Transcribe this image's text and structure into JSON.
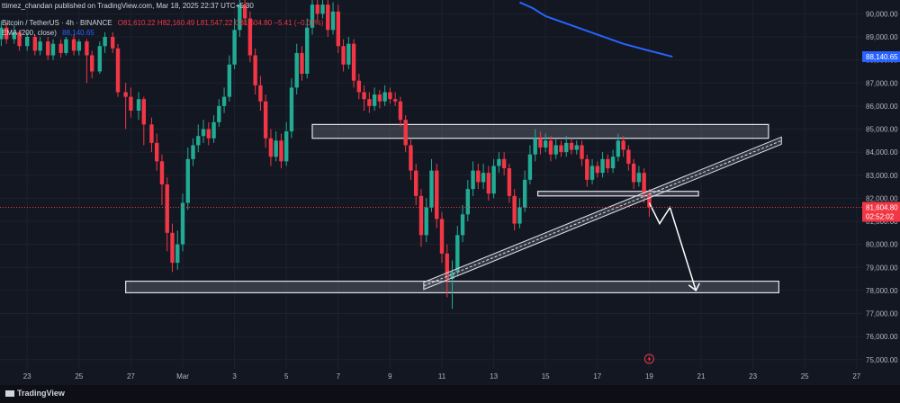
{
  "header": {
    "publisher": "ttimez_chandan published on TradingView.com, Mar 18, 2025 22:37 UTC+5:30",
    "symbol": "Bitcoin / TetherUS · 4h · BINANCE",
    "ohlc": "O81,610.22 H82,160.49 L81,547.22 C81,604.80 −5.41 (−0.01%)",
    "ema_label": "EMA (200, close)",
    "ema_value": "88,140.65"
  },
  "footer": {
    "brand": "TradingView"
  },
  "colors": {
    "bg": "#131722",
    "up": "#22ab94",
    "down": "#f23645",
    "ema": "#2962ff",
    "zone": "#e0e3eb"
  },
  "chart_data": {
    "type": "candlestick",
    "symbol": "BTCUSDT",
    "timeframe": "4h",
    "ylim": [
      74600,
      90600
    ],
    "y_ticks": [
      "75,000.00",
      "76,000.00",
      "77,000.00",
      "78,000.00",
      "79,000.00",
      "80,000.00",
      "81,000.00",
      "82,000.00",
      "83,000.00",
      "84,000.00",
      "85,000.00",
      "86,000.00",
      "87,000.00",
      "88,000.00",
      "89,000.00",
      "90,000.00"
    ],
    "x_ticks": [
      {
        "label": "23",
        "d": -6
      },
      {
        "label": "25",
        "d": -4
      },
      {
        "label": "27",
        "d": -2
      },
      {
        "label": "Mar",
        "d": 0
      },
      {
        "label": "3",
        "d": 2
      },
      {
        "label": "5",
        "d": 4
      },
      {
        "label": "7",
        "d": 6
      },
      {
        "label": "9",
        "d": 8
      },
      {
        "label": "11",
        "d": 10
      },
      {
        "label": "13",
        "d": 12
      },
      {
        "label": "15",
        "d": 14
      },
      {
        "label": "17",
        "d": 16
      },
      {
        "label": "19",
        "d": 18
      },
      {
        "label": "21",
        "d": 20
      },
      {
        "label": "23",
        "d": 22
      },
      {
        "label": "25",
        "d": 24
      },
      {
        "label": "27",
        "d": 26
      }
    ],
    "price_labels": {
      "ema": "88,140.65",
      "last": "81,604.80",
      "countdown": "02:52:02"
    },
    "resistance_zone": {
      "y_range": [
        84600,
        85200
      ]
    },
    "support_zone": {
      "y_range": [
        77900,
        78400
      ]
    },
    "mini_zone": {
      "y_range": [
        82100,
        82300
      ]
    },
    "ema_line": [
      {
        "d": 13.0,
        "y": 90500
      },
      {
        "d": 13.5,
        "y": 90250
      },
      {
        "d": 14.0,
        "y": 89900
      },
      {
        "d": 15.0,
        "y": 89500
      },
      {
        "d": 16.0,
        "y": 89100
      },
      {
        "d": 17.0,
        "y": 88700
      },
      {
        "d": 18.0,
        "y": 88400
      },
      {
        "d": 18.9,
        "y": 88140
      }
    ],
    "trendline": {
      "from": {
        "d": 9.3,
        "y": 78200
      },
      "to": {
        "d": 23.1,
        "y": 84500
      }
    },
    "projection": [
      {
        "d": 18.0,
        "y": 81800
      },
      {
        "d": 18.4,
        "y": 80900
      },
      {
        "d": 18.8,
        "y": 81600
      },
      {
        "d": 19.8,
        "y": 78000
      }
    ],
    "candles": [
      {
        "d": -7.0,
        "o": 88900,
        "c": 89400,
        "h": 89700,
        "l": 88600
      },
      {
        "d": -6.8,
        "o": 89400,
        "c": 88900,
        "h": 89600,
        "l": 88700
      },
      {
        "d": -6.5,
        "o": 88900,
        "c": 89200,
        "h": 89500,
        "l": 88700
      },
      {
        "d": -6.3,
        "o": 89200,
        "c": 88600,
        "h": 89300,
        "l": 88400
      },
      {
        "d": -6.0,
        "o": 88600,
        "c": 89000,
        "h": 89200,
        "l": 88400
      },
      {
        "d": -5.7,
        "o": 89000,
        "c": 88400,
        "h": 89100,
        "l": 88200
      },
      {
        "d": -5.5,
        "o": 88400,
        "c": 88800,
        "h": 89000,
        "l": 88200
      },
      {
        "d": -5.2,
        "o": 88800,
        "c": 88200,
        "h": 89000,
        "l": 88000
      },
      {
        "d": -5.0,
        "o": 88200,
        "c": 88700,
        "h": 88900,
        "l": 88000
      },
      {
        "d": -4.7,
        "o": 88700,
        "c": 88300,
        "h": 88900,
        "l": 88100
      },
      {
        "d": -4.5,
        "o": 88300,
        "c": 88900,
        "h": 89000,
        "l": 88200
      },
      {
        "d": -4.2,
        "o": 88900,
        "c": 88400,
        "h": 89100,
        "l": 88200
      },
      {
        "d": -4.0,
        "o": 88400,
        "c": 88800,
        "h": 88900,
        "l": 88200
      },
      {
        "d": -3.7,
        "o": 88800,
        "c": 88200,
        "h": 88900,
        "l": 87000
      },
      {
        "d": -3.5,
        "o": 88200,
        "c": 87500,
        "h": 88400,
        "l": 87200
      },
      {
        "d": -3.2,
        "o": 87500,
        "c": 88600,
        "h": 88800,
        "l": 87400
      },
      {
        "d": -3.0,
        "o": 88600,
        "c": 89000,
        "h": 89200,
        "l": 88300
      },
      {
        "d": -2.7,
        "o": 89000,
        "c": 88500,
        "h": 89200,
        "l": 88300
      },
      {
        "d": -2.5,
        "o": 88500,
        "c": 86600,
        "h": 88700,
        "l": 86400
      },
      {
        "d": -2.2,
        "o": 86600,
        "c": 86400,
        "h": 87000,
        "l": 85000
      },
      {
        "d": -2.0,
        "o": 86400,
        "c": 85800,
        "h": 86800,
        "l": 85500
      },
      {
        "d": -1.7,
        "o": 85800,
        "c": 86300,
        "h": 86600,
        "l": 85400
      },
      {
        "d": -1.5,
        "o": 86300,
        "c": 85200,
        "h": 86400,
        "l": 84300
      },
      {
        "d": -1.2,
        "o": 85200,
        "c": 84400,
        "h": 85500,
        "l": 84000
      },
      {
        "d": -1.0,
        "o": 84400,
        "c": 83600,
        "h": 84800,
        "l": 83200
      },
      {
        "d": -0.8,
        "o": 83600,
        "c": 82600,
        "h": 83900,
        "l": 81700
      },
      {
        "d": -0.6,
        "o": 82600,
        "c": 80500,
        "h": 82900,
        "l": 79700
      },
      {
        "d": -0.4,
        "o": 80500,
        "c": 79200,
        "h": 80900,
        "l": 78800
      },
      {
        "d": -0.2,
        "o": 79200,
        "c": 80000,
        "h": 80600,
        "l": 78900
      },
      {
        "d": 0.0,
        "o": 80000,
        "c": 81800,
        "h": 82200,
        "l": 79700
      },
      {
        "d": 0.2,
        "o": 81800,
        "c": 83700,
        "h": 84200,
        "l": 81500
      },
      {
        "d": 0.4,
        "o": 83700,
        "c": 84300,
        "h": 84600,
        "l": 83400
      },
      {
        "d": 0.6,
        "o": 84300,
        "c": 84700,
        "h": 85200,
        "l": 84000
      },
      {
        "d": 0.8,
        "o": 84700,
        "c": 85000,
        "h": 85400,
        "l": 84400
      },
      {
        "d": 1.0,
        "o": 85000,
        "c": 84600,
        "h": 85300,
        "l": 84300
      },
      {
        "d": 1.2,
        "o": 84600,
        "c": 85300,
        "h": 85600,
        "l": 84400
      },
      {
        "d": 1.4,
        "o": 85300,
        "c": 86000,
        "h": 86300,
        "l": 85100
      },
      {
        "d": 1.6,
        "o": 86000,
        "c": 86400,
        "h": 86800,
        "l": 85700
      },
      {
        "d": 1.8,
        "o": 86400,
        "c": 87800,
        "h": 88200,
        "l": 86200
      },
      {
        "d": 2.0,
        "o": 87800,
        "c": 89300,
        "h": 89800,
        "l": 87600
      },
      {
        "d": 2.2,
        "o": 89300,
        "c": 90400,
        "h": 90600,
        "l": 89000
      },
      {
        "d": 2.4,
        "o": 90400,
        "c": 89800,
        "h": 90600,
        "l": 89500
      },
      {
        "d": 2.6,
        "o": 89800,
        "c": 88200,
        "h": 90100,
        "l": 87900
      },
      {
        "d": 2.8,
        "o": 88200,
        "c": 86900,
        "h": 88500,
        "l": 86500
      },
      {
        "d": 3.0,
        "o": 86900,
        "c": 86200,
        "h": 87300,
        "l": 85800
      },
      {
        "d": 3.2,
        "o": 86200,
        "c": 84600,
        "h": 86500,
        "l": 84200
      },
      {
        "d": 3.4,
        "o": 84600,
        "c": 83800,
        "h": 85000,
        "l": 83400
      },
      {
        "d": 3.6,
        "o": 83800,
        "c": 84500,
        "h": 84900,
        "l": 83600
      },
      {
        "d": 3.8,
        "o": 84500,
        "c": 83600,
        "h": 84800,
        "l": 83300
      },
      {
        "d": 4.0,
        "o": 83600,
        "c": 84900,
        "h": 85300,
        "l": 83400
      },
      {
        "d": 4.2,
        "o": 84900,
        "c": 86800,
        "h": 87200,
        "l": 84600
      },
      {
        "d": 4.4,
        "o": 86800,
        "c": 88300,
        "h": 88700,
        "l": 86500
      },
      {
        "d": 4.6,
        "o": 88300,
        "c": 87400,
        "h": 88600,
        "l": 87100
      },
      {
        "d": 4.8,
        "o": 87400,
        "c": 89400,
        "h": 89800,
        "l": 87200
      },
      {
        "d": 5.0,
        "o": 89400,
        "c": 90400,
        "h": 90600,
        "l": 89100
      },
      {
        "d": 5.2,
        "o": 90400,
        "c": 90000,
        "h": 90600,
        "l": 89700
      },
      {
        "d": 5.4,
        "o": 90000,
        "c": 90400,
        "h": 90600,
        "l": 89800
      },
      {
        "d": 5.6,
        "o": 90400,
        "c": 89300,
        "h": 90600,
        "l": 89000
      },
      {
        "d": 5.8,
        "o": 89300,
        "c": 90100,
        "h": 90500,
        "l": 89100
      },
      {
        "d": 6.0,
        "o": 90100,
        "c": 88600,
        "h": 90400,
        "l": 88300
      },
      {
        "d": 6.2,
        "o": 88600,
        "c": 87800,
        "h": 88900,
        "l": 87500
      },
      {
        "d": 6.4,
        "o": 87800,
        "c": 88700,
        "h": 89000,
        "l": 87600
      },
      {
        "d": 6.6,
        "o": 88700,
        "c": 87100,
        "h": 88900,
        "l": 86800
      },
      {
        "d": 6.8,
        "o": 87100,
        "c": 86600,
        "h": 87400,
        "l": 86300
      },
      {
        "d": 7.0,
        "o": 86600,
        "c": 86300,
        "h": 86900,
        "l": 85800
      },
      {
        "d": 7.2,
        "o": 86300,
        "c": 86000,
        "h": 86600,
        "l": 85700
      },
      {
        "d": 7.4,
        "o": 86000,
        "c": 86500,
        "h": 86800,
        "l": 85800
      },
      {
        "d": 7.6,
        "o": 86500,
        "c": 86200,
        "h": 86700,
        "l": 85900
      },
      {
        "d": 7.8,
        "o": 86200,
        "c": 86600,
        "h": 86900,
        "l": 86000
      },
      {
        "d": 8.0,
        "o": 86600,
        "c": 86300,
        "h": 86800,
        "l": 86100
      },
      {
        "d": 8.2,
        "o": 86300,
        "c": 86200,
        "h": 86600,
        "l": 86000
      },
      {
        "d": 8.4,
        "o": 86200,
        "c": 85400,
        "h": 86400,
        "l": 85100
      },
      {
        "d": 8.6,
        "o": 85400,
        "c": 84300,
        "h": 85600,
        "l": 84000
      },
      {
        "d": 8.8,
        "o": 84300,
        "c": 83200,
        "h": 84600,
        "l": 82800
      },
      {
        "d": 9.0,
        "o": 83200,
        "c": 82100,
        "h": 83500,
        "l": 81700
      },
      {
        "d": 9.2,
        "o": 82100,
        "c": 80400,
        "h": 82400,
        "l": 79900
      },
      {
        "d": 9.4,
        "o": 80400,
        "c": 81600,
        "h": 82000,
        "l": 80100
      },
      {
        "d": 9.6,
        "o": 81600,
        "c": 83200,
        "h": 83700,
        "l": 81400
      },
      {
        "d": 9.8,
        "o": 83200,
        "c": 81100,
        "h": 83500,
        "l": 80700
      },
      {
        "d": 10.0,
        "o": 81100,
        "c": 79600,
        "h": 81400,
        "l": 79200
      },
      {
        "d": 10.2,
        "o": 79600,
        "c": 78500,
        "h": 80000,
        "l": 77700
      },
      {
        "d": 10.4,
        "o": 78500,
        "c": 78800,
        "h": 79300,
        "l": 77200
      },
      {
        "d": 10.6,
        "o": 78800,
        "c": 80400,
        "h": 80800,
        "l": 78600
      },
      {
        "d": 10.8,
        "o": 80400,
        "c": 81300,
        "h": 81700,
        "l": 80100
      },
      {
        "d": 11.0,
        "o": 81300,
        "c": 82400,
        "h": 82800,
        "l": 81000
      },
      {
        "d": 11.2,
        "o": 82400,
        "c": 83200,
        "h": 83600,
        "l": 82100
      },
      {
        "d": 11.4,
        "o": 83200,
        "c": 82700,
        "h": 83500,
        "l": 82400
      },
      {
        "d": 11.6,
        "o": 82700,
        "c": 83100,
        "h": 83500,
        "l": 82400
      },
      {
        "d": 11.8,
        "o": 83100,
        "c": 82200,
        "h": 83400,
        "l": 81900
      },
      {
        "d": 12.0,
        "o": 82200,
        "c": 83400,
        "h": 83700,
        "l": 82000
      },
      {
        "d": 12.2,
        "o": 83400,
        "c": 83700,
        "h": 84000,
        "l": 83100
      },
      {
        "d": 12.4,
        "o": 83700,
        "c": 83300,
        "h": 84000,
        "l": 83000
      },
      {
        "d": 12.6,
        "o": 83300,
        "c": 82100,
        "h": 83500,
        "l": 81800
      },
      {
        "d": 12.8,
        "o": 82100,
        "c": 80900,
        "h": 82400,
        "l": 80600
      },
      {
        "d": 13.0,
        "o": 80900,
        "c": 81600,
        "h": 82000,
        "l": 80700
      },
      {
        "d": 13.2,
        "o": 81600,
        "c": 82800,
        "h": 83200,
        "l": 81400
      },
      {
        "d": 13.4,
        "o": 82800,
        "c": 83900,
        "h": 84300,
        "l": 82600
      },
      {
        "d": 13.6,
        "o": 83900,
        "c": 84600,
        "h": 85000,
        "l": 83600
      },
      {
        "d": 13.8,
        "o": 84600,
        "c": 84200,
        "h": 84900,
        "l": 83900
      },
      {
        "d": 14.0,
        "o": 84200,
        "c": 84500,
        "h": 84800,
        "l": 84000
      },
      {
        "d": 14.2,
        "o": 84500,
        "c": 83900,
        "h": 84700,
        "l": 83600
      },
      {
        "d": 14.4,
        "o": 83900,
        "c": 84300,
        "h": 84600,
        "l": 83700
      },
      {
        "d": 14.6,
        "o": 84300,
        "c": 84000,
        "h": 84500,
        "l": 83800
      },
      {
        "d": 14.8,
        "o": 84000,
        "c": 84400,
        "h": 84700,
        "l": 83800
      },
      {
        "d": 15.0,
        "o": 84400,
        "c": 84100,
        "h": 84600,
        "l": 83900
      },
      {
        "d": 15.2,
        "o": 84100,
        "c": 84300,
        "h": 84500,
        "l": 83900
      },
      {
        "d": 15.4,
        "o": 84300,
        "c": 83700,
        "h": 84500,
        "l": 83400
      },
      {
        "d": 15.6,
        "o": 83700,
        "c": 82800,
        "h": 83900,
        "l": 82500
      },
      {
        "d": 15.8,
        "o": 82800,
        "c": 83400,
        "h": 83700,
        "l": 82600
      },
      {
        "d": 16.0,
        "o": 83400,
        "c": 83100,
        "h": 83600,
        "l": 82900
      },
      {
        "d": 16.2,
        "o": 83100,
        "c": 83700,
        "h": 84000,
        "l": 82900
      },
      {
        "d": 16.4,
        "o": 83700,
        "c": 83300,
        "h": 83900,
        "l": 83100
      },
      {
        "d": 16.6,
        "o": 83300,
        "c": 83800,
        "h": 84100,
        "l": 83100
      },
      {
        "d": 16.8,
        "o": 83800,
        "c": 84500,
        "h": 84800,
        "l": 83600
      },
      {
        "d": 17.0,
        "o": 84500,
        "c": 84100,
        "h": 84700,
        "l": 83800
      },
      {
        "d": 17.2,
        "o": 84100,
        "c": 83500,
        "h": 84300,
        "l": 83200
      },
      {
        "d": 17.4,
        "o": 83500,
        "c": 82700,
        "h": 83700,
        "l": 82400
      },
      {
        "d": 17.6,
        "o": 82700,
        "c": 83100,
        "h": 83400,
        "l": 82500
      },
      {
        "d": 17.8,
        "o": 83100,
        "c": 82200,
        "h": 83300,
        "l": 81800
      },
      {
        "d": 18.0,
        "o": 82200,
        "c": 81604,
        "h": 82400,
        "l": 81200
      }
    ]
  }
}
